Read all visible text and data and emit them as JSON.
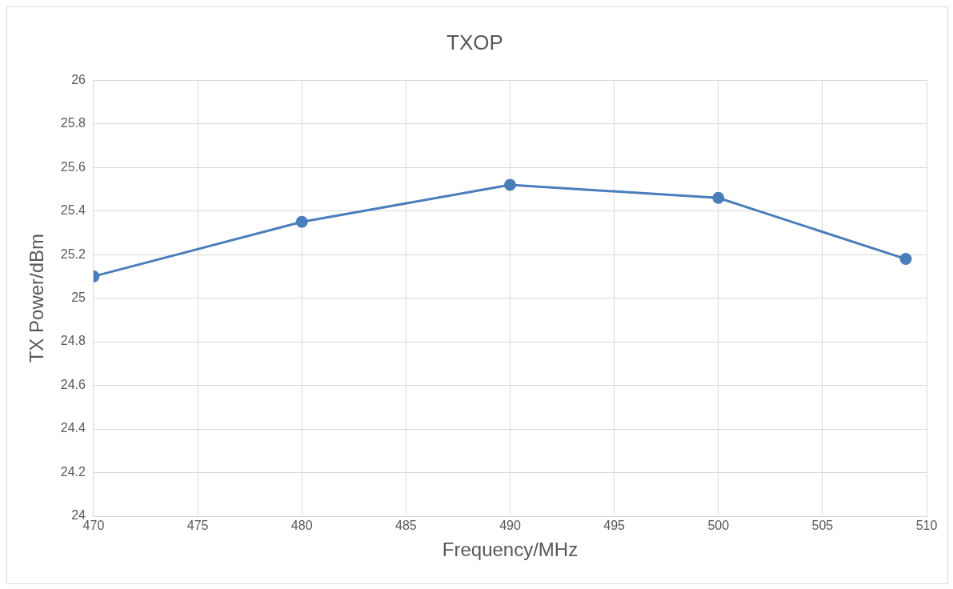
{
  "chart_data": {
    "type": "line",
    "title": "TXOP",
    "xlabel": "Frequency/MHz",
    "ylabel": "TX Power/dBm",
    "x": [
      470,
      480,
      490,
      500,
      509
    ],
    "series": [
      {
        "color": "#4a7ebb",
        "values": [
          25.1,
          25.35,
          25.52,
          25.46,
          25.18
        ]
      }
    ],
    "xlim": [
      470,
      510
    ],
    "xticks": [
      470,
      475,
      480,
      485,
      490,
      495,
      500,
      505,
      510
    ],
    "ylim": [
      24,
      26
    ],
    "yticks": [
      24,
      24.2,
      24.4,
      24.6,
      24.8,
      25,
      25.2,
      25.4,
      25.6,
      25.8,
      26
    ],
    "grid": true,
    "legend": false,
    "marker": "circle",
    "line_style": "solid"
  }
}
